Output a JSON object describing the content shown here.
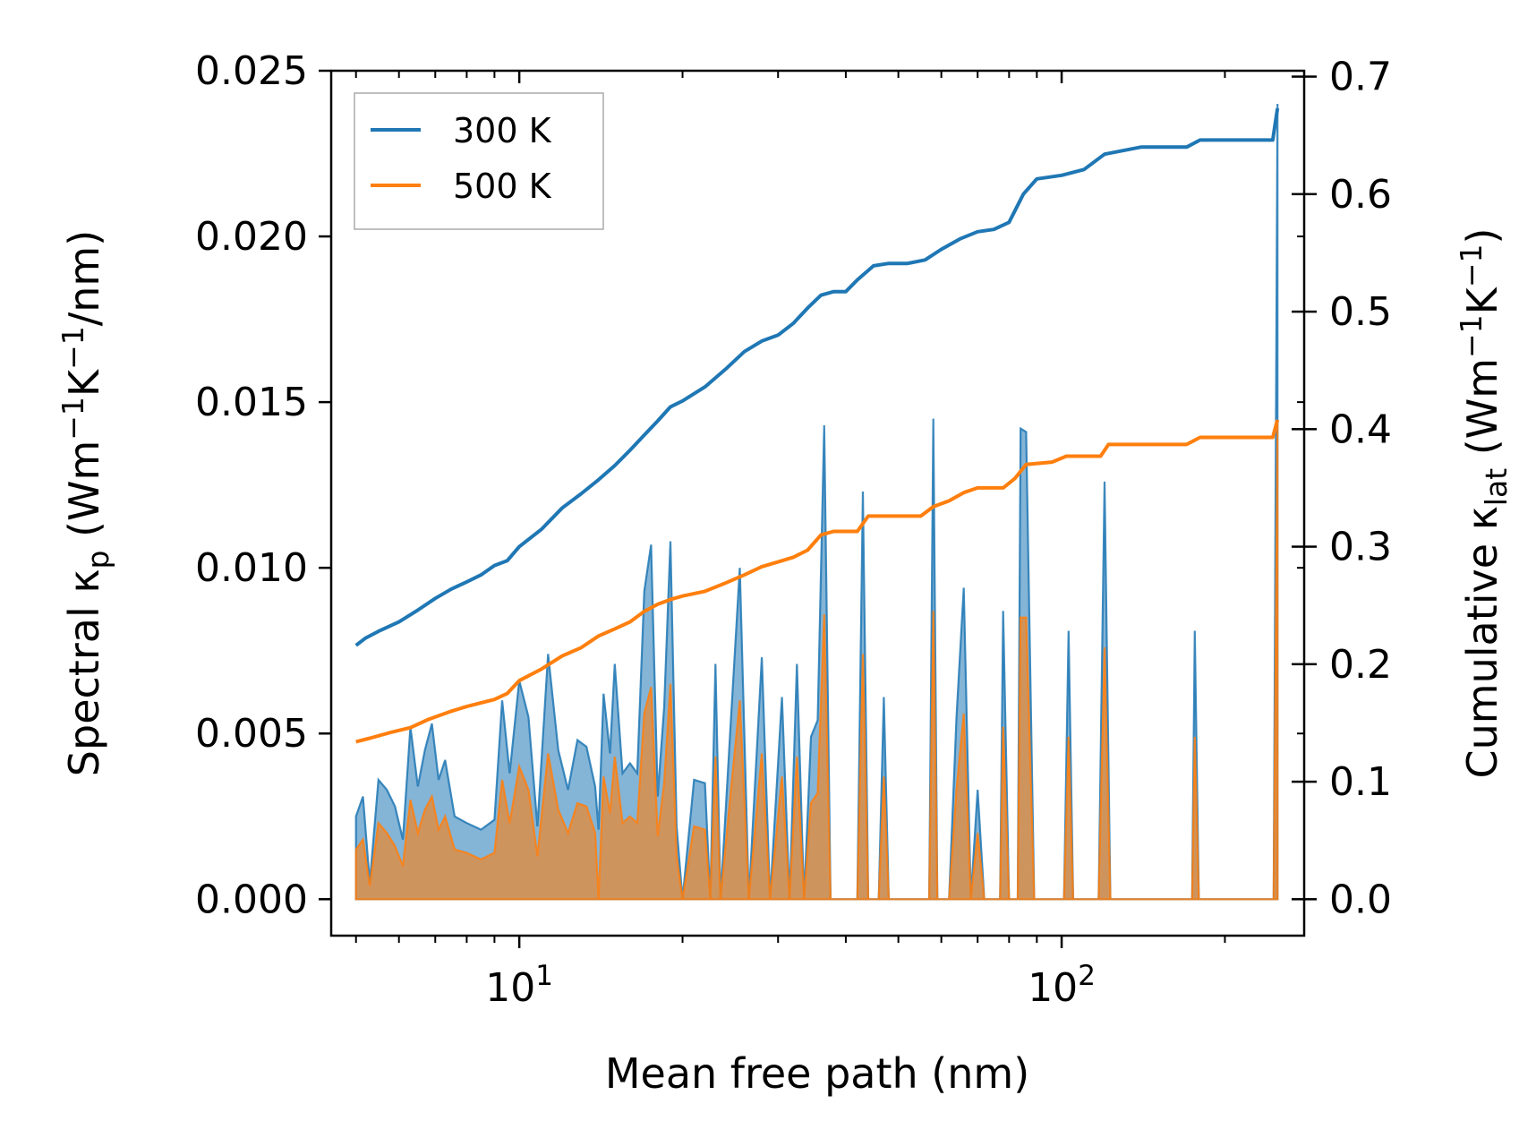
{
  "chart_data": {
    "type": "line",
    "xscale": "log",
    "xlabel": "Mean free path (nm)",
    "xlim": [
      4.5,
      280
    ],
    "x_ticks": [
      {
        "value": 10,
        "base": "10",
        "exp": "1"
      },
      {
        "value": 100,
        "base": "10",
        "exp": "2"
      }
    ],
    "y_left": {
      "label_prefix": "Spectral κ",
      "label_sub": "p",
      "label_units_a": " (Wm",
      "label_sup1": "−1",
      "label_units_b": "K",
      "label_sup2": "−1",
      "label_units_c": "/nm)",
      "ylim": [
        -0.0011,
        0.025
      ],
      "ticks": [
        0.0,
        0.005,
        0.01,
        0.015,
        0.02,
        0.025
      ],
      "tick_labels": [
        "0.000",
        "0.005",
        "0.010",
        "0.015",
        "0.020",
        "0.025"
      ]
    },
    "y_right": {
      "label_prefix": "Cumulative κ",
      "label_sub": "lat",
      "label_units_a": " (Wm",
      "label_sup1": "−1",
      "label_units_b": "K",
      "label_sup2": "−1",
      "label_units_c": ")",
      "ylim": [
        -0.031,
        0.705
      ],
      "ticks": [
        0.0,
        0.1,
        0.2,
        0.3,
        0.4,
        0.5,
        0.6,
        0.7
      ],
      "tick_labels": [
        "0.0",
        "0.1",
        "0.2",
        "0.3",
        "0.4",
        "0.5",
        "0.6",
        "0.7"
      ]
    },
    "legend_position": "top-left",
    "series": [
      {
        "name": "300 K",
        "color": "#1f77b4",
        "fill_color": "#1f77b4",
        "cumulative": [
          [
            5.0,
            0.216
          ],
          [
            5.2,
            0.222
          ],
          [
            5.5,
            0.228
          ],
          [
            6.0,
            0.236
          ],
          [
            6.5,
            0.246
          ],
          [
            7.0,
            0.256
          ],
          [
            7.5,
            0.264
          ],
          [
            8.0,
            0.27
          ],
          [
            8.5,
            0.276
          ],
          [
            9.0,
            0.284
          ],
          [
            9.5,
            0.288
          ],
          [
            10.0,
            0.3
          ],
          [
            11.0,
            0.315
          ],
          [
            12.0,
            0.333
          ],
          [
            13.0,
            0.345
          ],
          [
            14.0,
            0.357
          ],
          [
            15.0,
            0.369
          ],
          [
            16.0,
            0.382
          ],
          [
            17.0,
            0.395
          ],
          [
            18.0,
            0.407
          ],
          [
            19.0,
            0.419
          ],
          [
            20.0,
            0.424
          ],
          [
            22.0,
            0.436
          ],
          [
            24.0,
            0.451
          ],
          [
            26.0,
            0.466
          ],
          [
            28.0,
            0.475
          ],
          [
            30.0,
            0.48
          ],
          [
            32.0,
            0.49
          ],
          [
            34.0,
            0.503
          ],
          [
            36.0,
            0.514
          ],
          [
            38.0,
            0.517
          ],
          [
            40.0,
            0.517
          ],
          [
            42.0,
            0.527
          ],
          [
            45.0,
            0.539
          ],
          [
            48.0,
            0.541
          ],
          [
            52.0,
            0.541
          ],
          [
            56.0,
            0.544
          ],
          [
            60.0,
            0.553
          ],
          [
            65.0,
            0.562
          ],
          [
            70.0,
            0.568
          ],
          [
            75.0,
            0.57
          ],
          [
            80.0,
            0.576
          ],
          [
            85.0,
            0.6
          ],
          [
            90.0,
            0.613
          ],
          [
            100.0,
            0.616
          ],
          [
            110.0,
            0.621
          ],
          [
            120.0,
            0.634
          ],
          [
            140.0,
            0.64
          ],
          [
            170.0,
            0.64
          ],
          [
            180.0,
            0.646
          ],
          [
            200.0,
            0.646
          ],
          [
            245.0,
            0.646
          ],
          [
            250.0,
            0.673
          ]
        ],
        "spectral": [
          [
            5.0,
            0.0025
          ],
          [
            5.15,
            0.0031
          ],
          [
            5.3,
            0.0005
          ],
          [
            5.5,
            0.0036
          ],
          [
            5.7,
            0.0033
          ],
          [
            5.9,
            0.0028
          ],
          [
            6.1,
            0.0018
          ],
          [
            6.3,
            0.0052
          ],
          [
            6.5,
            0.0034
          ],
          [
            6.7,
            0.0045
          ],
          [
            6.9,
            0.0053
          ],
          [
            7.1,
            0.0036
          ],
          [
            7.3,
            0.0042
          ],
          [
            7.6,
            0.0025
          ],
          [
            8.0,
            0.0023
          ],
          [
            8.5,
            0.0021
          ],
          [
            9.0,
            0.0024
          ],
          [
            9.3,
            0.006
          ],
          [
            9.6,
            0.0038
          ],
          [
            10.0,
            0.0066
          ],
          [
            10.4,
            0.0055
          ],
          [
            10.8,
            0.0022
          ],
          [
            11.3,
            0.0074
          ],
          [
            11.8,
            0.0045
          ],
          [
            12.3,
            0.0033
          ],
          [
            12.8,
            0.0048
          ],
          [
            13.3,
            0.0046
          ],
          [
            13.8,
            0.0034
          ],
          [
            14.0,
            0.0021
          ],
          [
            14.3,
            0.0062
          ],
          [
            14.7,
            0.0044
          ],
          [
            15.0,
            0.0071
          ],
          [
            15.5,
            0.0038
          ],
          [
            16.0,
            0.0041
          ],
          [
            16.5,
            0.0038
          ],
          [
            17.0,
            0.0093
          ],
          [
            17.5,
            0.0107
          ],
          [
            18.0,
            0.0031
          ],
          [
            18.5,
            0.0058
          ],
          [
            19.0,
            0.0108
          ],
          [
            19.5,
            0.0022
          ],
          [
            20.0,
            0.0
          ],
          [
            21.0,
            0.0036
          ],
          [
            22.0,
            0.0035
          ],
          [
            22.5,
            0.0
          ],
          [
            23.0,
            0.0071
          ],
          [
            23.5,
            0.0
          ],
          [
            24.5,
            0.0051
          ],
          [
            25.5,
            0.01
          ],
          [
            26.5,
            0.0
          ],
          [
            28.0,
            0.0073
          ],
          [
            29.0,
            0.0
          ],
          [
            30.5,
            0.0061
          ],
          [
            31.5,
            0.0
          ],
          [
            32.5,
            0.0071
          ],
          [
            33.5,
            0.0
          ],
          [
            34.5,
            0.0049
          ],
          [
            35.5,
            0.0054
          ],
          [
            36.5,
            0.0143
          ],
          [
            37.5,
            0.0
          ],
          [
            42.0,
            0.0
          ],
          [
            43.0,
            0.0123
          ],
          [
            44.0,
            0.0
          ],
          [
            46.0,
            0.0
          ],
          [
            47.0,
            0.0061
          ],
          [
            48.0,
            0.0
          ],
          [
            57.0,
            0.0
          ],
          [
            58.0,
            0.0145
          ],
          [
            59.0,
            0.0
          ],
          [
            62.0,
            0.0
          ],
          [
            64.0,
            0.0055
          ],
          [
            66.0,
            0.0094
          ],
          [
            68.0,
            0.0
          ],
          [
            70.0,
            0.0033
          ],
          [
            72.0,
            0.0
          ],
          [
            77.0,
            0.0
          ],
          [
            78.0,
            0.0087
          ],
          [
            80.0,
            0.0
          ],
          [
            83.0,
            0.0
          ],
          [
            84.0,
            0.0142
          ],
          [
            86.0,
            0.0141
          ],
          [
            89.0,
            0.0
          ],
          [
            101.0,
            0.0
          ],
          [
            103.0,
            0.0081
          ],
          [
            105.0,
            0.0
          ],
          [
            117.0,
            0.0
          ],
          [
            120.0,
            0.0126
          ],
          [
            123.0,
            0.0
          ],
          [
            174.0,
            0.0
          ],
          [
            176.0,
            0.0081
          ],
          [
            179.0,
            0.0
          ],
          [
            246.0,
            0.0
          ],
          [
            250.0,
            0.024
          ]
        ]
      },
      {
        "name": "500 K",
        "color": "#ff7f0e",
        "fill_color": "#ff7f0e",
        "cumulative": [
          [
            5.0,
            0.134
          ],
          [
            5.3,
            0.137
          ],
          [
            5.8,
            0.142
          ],
          [
            6.3,
            0.146
          ],
          [
            6.8,
            0.153
          ],
          [
            7.5,
            0.16
          ],
          [
            8.0,
            0.164
          ],
          [
            9.0,
            0.17
          ],
          [
            9.5,
            0.175
          ],
          [
            10.0,
            0.186
          ],
          [
            11.0,
            0.196
          ],
          [
            12.0,
            0.207
          ],
          [
            13.0,
            0.214
          ],
          [
            14.0,
            0.224
          ],
          [
            15.0,
            0.23
          ],
          [
            16.0,
            0.236
          ],
          [
            17.0,
            0.245
          ],
          [
            18.0,
            0.251
          ],
          [
            19.0,
            0.255
          ],
          [
            20.0,
            0.258
          ],
          [
            22.0,
            0.262
          ],
          [
            24.0,
            0.269
          ],
          [
            26.0,
            0.276
          ],
          [
            28.0,
            0.283
          ],
          [
            30.0,
            0.287
          ],
          [
            32.0,
            0.291
          ],
          [
            34.0,
            0.297
          ],
          [
            36.0,
            0.31
          ],
          [
            38.0,
            0.313
          ],
          [
            42.0,
            0.313
          ],
          [
            44.0,
            0.326
          ],
          [
            48.0,
            0.326
          ],
          [
            55.0,
            0.326
          ],
          [
            58.0,
            0.334
          ],
          [
            62.0,
            0.339
          ],
          [
            66.0,
            0.346
          ],
          [
            70.0,
            0.35
          ],
          [
            78.0,
            0.35
          ],
          [
            82.0,
            0.358
          ],
          [
            86.0,
            0.37
          ],
          [
            96.0,
            0.372
          ],
          [
            102.0,
            0.377
          ],
          [
            118.0,
            0.377
          ],
          [
            122.0,
            0.387
          ],
          [
            170.0,
            0.387
          ],
          [
            180.0,
            0.393
          ],
          [
            245.0,
            0.393
          ],
          [
            250.0,
            0.408
          ]
        ],
        "spectral": [
          [
            5.0,
            0.0015
          ],
          [
            5.15,
            0.0018
          ],
          [
            5.3,
            0.0004
          ],
          [
            5.5,
            0.0023
          ],
          [
            5.7,
            0.002
          ],
          [
            5.9,
            0.0016
          ],
          [
            6.1,
            0.001
          ],
          [
            6.3,
            0.003
          ],
          [
            6.5,
            0.002
          ],
          [
            6.7,
            0.0027
          ],
          [
            6.9,
            0.0031
          ],
          [
            7.1,
            0.0021
          ],
          [
            7.3,
            0.0025
          ],
          [
            7.6,
            0.0015
          ],
          [
            8.0,
            0.0014
          ],
          [
            8.5,
            0.0012
          ],
          [
            9.0,
            0.0014
          ],
          [
            9.3,
            0.0036
          ],
          [
            9.6,
            0.0023
          ],
          [
            10.0,
            0.004
          ],
          [
            10.4,
            0.0033
          ],
          [
            10.8,
            0.0013
          ],
          [
            11.3,
            0.0044
          ],
          [
            11.8,
            0.0027
          ],
          [
            12.3,
            0.002
          ],
          [
            12.8,
            0.0029
          ],
          [
            13.3,
            0.0028
          ],
          [
            13.8,
            0.002
          ],
          [
            14.0,
            0.0
          ],
          [
            14.3,
            0.0037
          ],
          [
            14.7,
            0.0026
          ],
          [
            15.0,
            0.0043
          ],
          [
            15.5,
            0.0023
          ],
          [
            16.0,
            0.0025
          ],
          [
            16.5,
            0.0023
          ],
          [
            17.0,
            0.0056
          ],
          [
            17.5,
            0.0064
          ],
          [
            18.0,
            0.0019
          ],
          [
            18.5,
            0.0035
          ],
          [
            19.0,
            0.0065
          ],
          [
            19.5,
            0.0013
          ],
          [
            20.0,
            0.0
          ],
          [
            21.0,
            0.0022
          ],
          [
            22.0,
            0.0021
          ],
          [
            22.5,
            0.0
          ],
          [
            23.0,
            0.0043
          ],
          [
            23.5,
            0.0
          ],
          [
            24.5,
            0.0031
          ],
          [
            25.5,
            0.006
          ],
          [
            26.5,
            0.0
          ],
          [
            28.0,
            0.0044
          ],
          [
            29.0,
            0.0
          ],
          [
            30.5,
            0.0037
          ],
          [
            31.5,
            0.0
          ],
          [
            32.5,
            0.0043
          ],
          [
            33.5,
            0.0
          ],
          [
            34.5,
            0.0029
          ],
          [
            35.5,
            0.0032
          ],
          [
            36.5,
            0.0086
          ],
          [
            37.5,
            0.0
          ],
          [
            42.0,
            0.0
          ],
          [
            43.0,
            0.0074
          ],
          [
            44.0,
            0.0
          ],
          [
            46.0,
            0.0
          ],
          [
            47.0,
            0.0037
          ],
          [
            48.0,
            0.0
          ],
          [
            57.0,
            0.0
          ],
          [
            58.0,
            0.0087
          ],
          [
            59.0,
            0.0
          ],
          [
            62.0,
            0.0
          ],
          [
            64.0,
            0.0033
          ],
          [
            66.0,
            0.0056
          ],
          [
            68.0,
            0.0
          ],
          [
            70.0,
            0.002
          ],
          [
            72.0,
            0.0
          ],
          [
            77.0,
            0.0
          ],
          [
            78.0,
            0.0052
          ],
          [
            80.0,
            0.0
          ],
          [
            83.0,
            0.0
          ],
          [
            84.0,
            0.0085
          ],
          [
            86.0,
            0.0085
          ],
          [
            89.0,
            0.0
          ],
          [
            101.0,
            0.0
          ],
          [
            103.0,
            0.0049
          ],
          [
            105.0,
            0.0
          ],
          [
            117.0,
            0.0
          ],
          [
            120.0,
            0.0076
          ],
          [
            123.0,
            0.0
          ],
          [
            174.0,
            0.0
          ],
          [
            176.0,
            0.0049
          ],
          [
            179.0,
            0.0
          ],
          [
            246.0,
            0.0
          ],
          [
            250.0,
            0.0144
          ]
        ]
      }
    ]
  }
}
